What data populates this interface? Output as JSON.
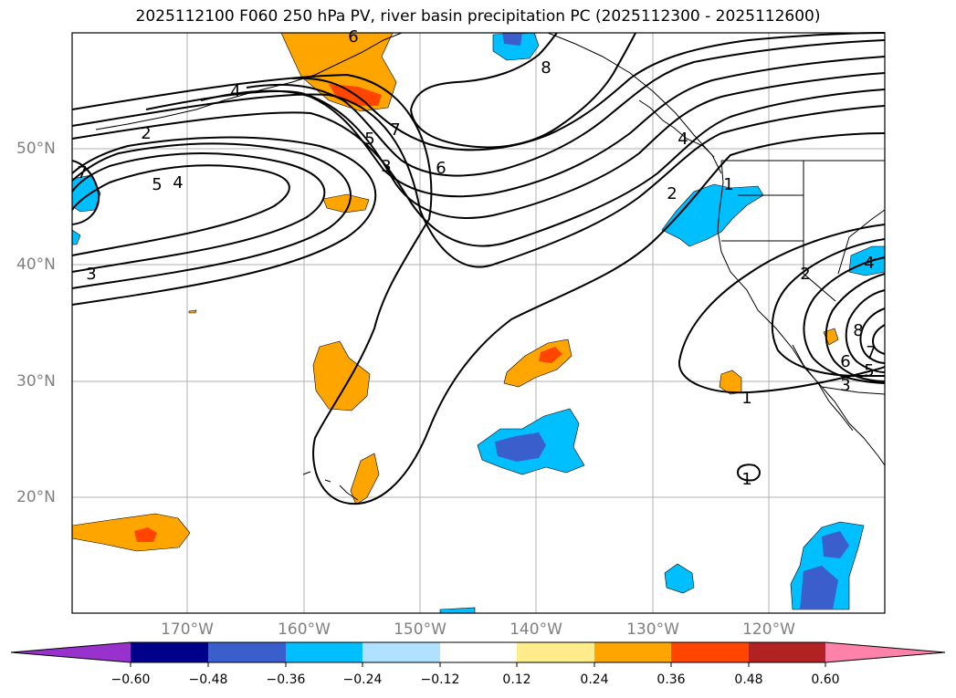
{
  "title": "2025112100 F060 250 hPa PV, river basin precipitation PC (2025112300 - 2025112600)",
  "lat_labels": [
    "50°N",
    "40°N",
    "30°N",
    "20°N"
  ],
  "lon_labels": [
    "170°W",
    "160°W",
    "150°W",
    "140°W",
    "130°W",
    "120°W"
  ],
  "contour_labels": [
    "6",
    "4",
    "2",
    "7",
    "5",
    "4",
    "5",
    "3",
    "7",
    "6",
    "3",
    "4",
    "8",
    "2",
    "1",
    "2",
    "4",
    "8",
    "7",
    "6",
    "5",
    "3",
    "1",
    "1"
  ],
  "colorbar": {
    "ticks": [
      "−0.60",
      "−0.48",
      "−0.36",
      "−0.24",
      "−0.12",
      "0.12",
      "0.24",
      "0.36",
      "0.48",
      "0.60"
    ],
    "colors": [
      "#9932cc",
      "#00008b",
      "#3a5fcd",
      "#00bfff",
      "#b0e2ff",
      "#ffffff",
      "#ffec8b",
      "#ffa500",
      "#ff4500",
      "#b22222",
      "#ff82ab"
    ]
  },
  "colors": {
    "positive_light": "#ffa500",
    "positive_strong": "#ff4500",
    "negative_light": "#00bfff",
    "negative_strong": "#3a5fcd",
    "grid": "#b0b0b0"
  }
}
